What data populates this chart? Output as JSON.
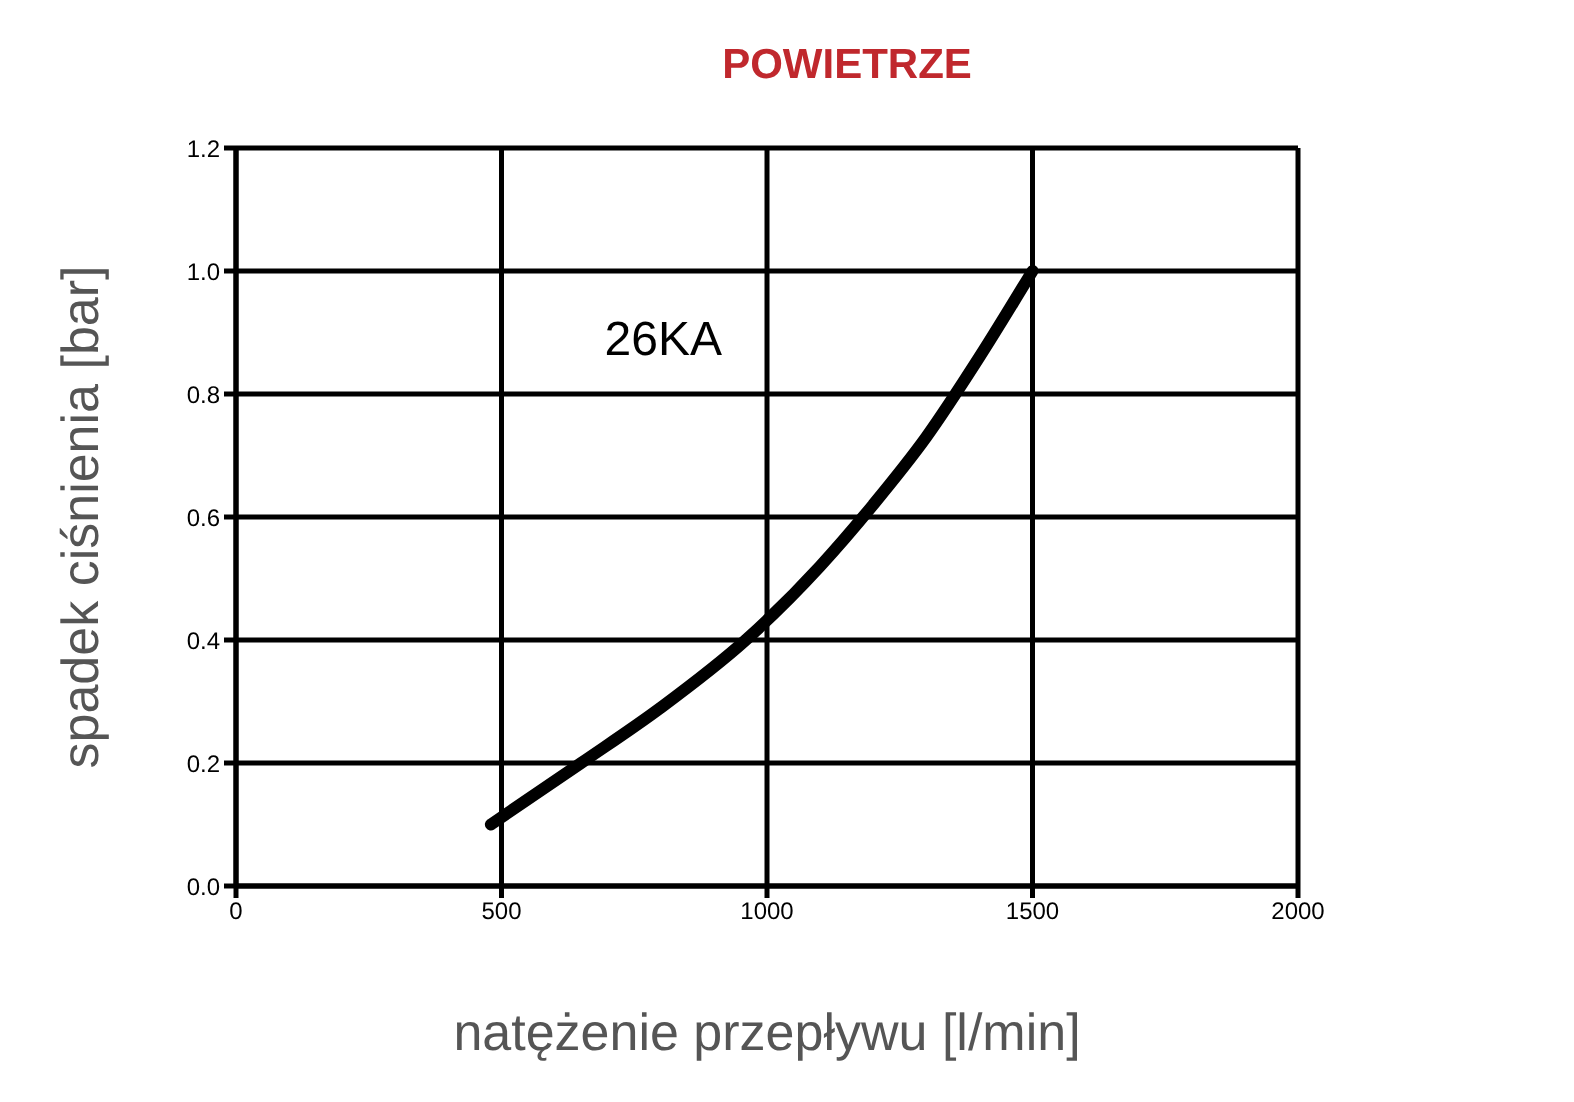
{
  "chart_data": {
    "type": "line",
    "title": "POWIETRZE",
    "xlabel": "natężenie przepływu [l/min]",
    "ylabel": "spadek ciśnienia [bar]",
    "xlim": [
      0,
      2000
    ],
    "xticks": [
      0,
      500,
      1000,
      1500,
      2000
    ],
    "ylim": [
      0,
      1.2
    ],
    "yticks": [
      {
        "value": 0,
        "label": "0.0"
      },
      {
        "value": 0.2,
        "label": "0.2"
      },
      {
        "value": 0.4,
        "label": "0.4"
      },
      {
        "value": 0.6,
        "label": "0.6"
      },
      {
        "value": 0.8,
        "label": "0.8"
      },
      {
        "value": 1,
        "label": "1.0"
      },
      {
        "value": 1.2,
        "label": "1.2"
      }
    ],
    "grid": true,
    "legend": false,
    "marker": "none",
    "line_style": "solid",
    "series": [
      {
        "name": "26KA",
        "color": "#000000",
        "x": [
          480,
          650,
          800,
          960,
          1100,
          1200,
          1300,
          1400,
          1500
        ],
        "values": [
          0.1,
          0.2,
          0.29,
          0.4,
          0.52,
          0.62,
          0.73,
          0.86,
          1.0
        ]
      }
    ]
  }
}
